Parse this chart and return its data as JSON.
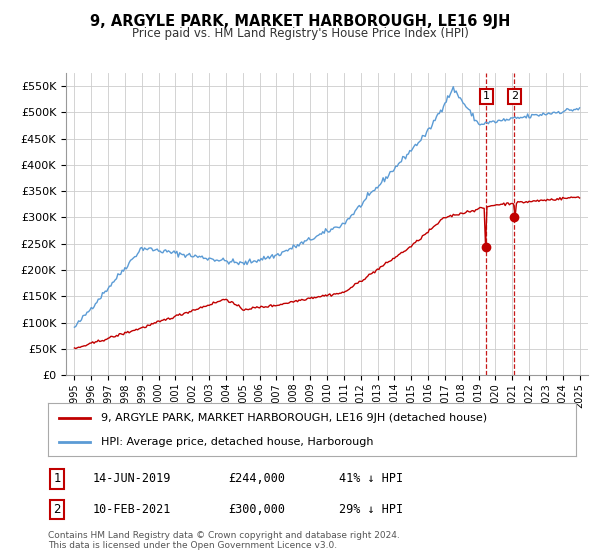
{
  "title": "9, ARGYLE PARK, MARKET HARBOROUGH, LE16 9JH",
  "subtitle": "Price paid vs. HM Land Registry's House Price Index (HPI)",
  "ylim": [
    0,
    575000
  ],
  "yticks": [
    0,
    50000,
    100000,
    150000,
    200000,
    250000,
    300000,
    350000,
    400000,
    450000,
    500000,
    550000
  ],
  "hpi_color": "#5b9bd5",
  "price_color": "#c00000",
  "dashed_color": "#c00000",
  "transaction1_date": "14-JUN-2019",
  "transaction1_price": 244000,
  "transaction1_pct": "41%",
  "transaction2_date": "10-FEB-2021",
  "transaction2_price": 300000,
  "transaction2_pct": "29%",
  "legend_label1": "9, ARGYLE PARK, MARKET HARBOROUGH, LE16 9JH (detached house)",
  "legend_label2": "HPI: Average price, detached house, Harborough",
  "footer": "Contains HM Land Registry data © Crown copyright and database right 2024.\nThis data is licensed under the Open Government Licence v3.0.",
  "background_color": "#ffffff",
  "grid_color": "#cccccc"
}
